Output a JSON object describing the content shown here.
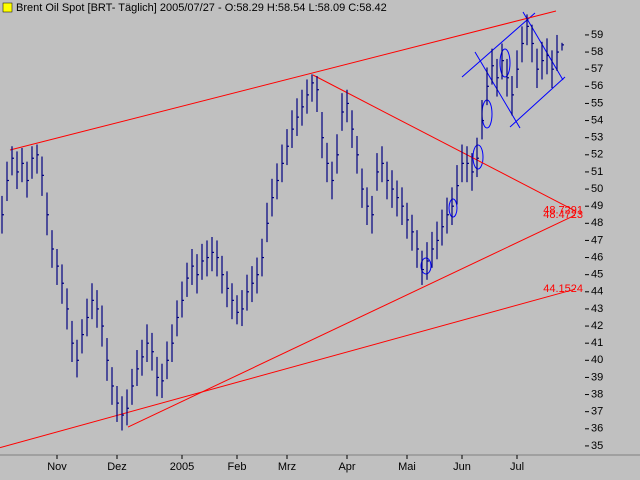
{
  "chart_data": {
    "type": "ohlc",
    "title": "Brent Oil Spot [BRT-  Täglich] 2005/07/27 - O:58.29 H:58.54 L:58.09 C:58.42",
    "categories": [
      null,
      null,
      null,
      null,
      null,
      null,
      null,
      null,
      null,
      null,
      null,
      "Nov",
      null,
      null,
      null,
      null,
      null,
      null,
      null,
      null,
      null,
      null,
      null,
      "Dez",
      null,
      null,
      null,
      null,
      null,
      null,
      null,
      null,
      null,
      null,
      null,
      null,
      "2005",
      null,
      null,
      null,
      null,
      null,
      null,
      null,
      null,
      null,
      null,
      "Feb",
      null,
      null,
      null,
      null,
      null,
      null,
      null,
      null,
      null,
      "Mrz",
      null,
      null,
      null,
      null,
      null,
      null,
      null,
      null,
      null,
      null,
      null,
      "Apr",
      null,
      null,
      null,
      null,
      null,
      null,
      null,
      null,
      null,
      null,
      null,
      "Mai",
      null,
      null,
      null,
      null,
      null,
      null,
      null,
      null,
      null,
      null,
      "Jun",
      null,
      null,
      null,
      null,
      null,
      null,
      null,
      null,
      null,
      null,
      "Jul",
      null,
      null,
      null,
      null,
      null,
      null,
      null,
      null,
      null
    ],
    "series": [
      {
        "name": "High",
        "values": [
          49.6,
          51.6,
          52.5,
          52.2,
          52.4,
          51.6,
          52.5,
          52.6,
          51.9,
          49.8,
          47.6,
          46.5,
          45.6,
          44.2,
          42.3,
          41.2,
          42.4,
          43.6,
          44.5,
          44.1,
          43.2,
          41.3,
          39.6,
          38.5,
          37.9,
          38.3,
          39.5,
          40.6,
          41.2,
          42.1,
          41.6,
          40.2,
          39.8,
          41.1,
          42.1,
          43.5,
          44.6,
          45.7,
          46.5,
          46.2,
          46.8,
          47,
          47.2,
          47,
          46.1,
          45.2,
          44.5,
          43.8,
          44.1,
          45,
          45.5,
          46,
          47.1,
          49.2,
          50.6,
          51.5,
          52.6,
          53.5,
          54.6,
          55.3,
          55.8,
          56.4,
          56.7,
          56.6,
          54.5,
          52.7,
          51.6,
          53.2,
          55.6,
          55.8,
          54.6,
          53.1,
          51.2,
          50.1,
          49.6,
          52.1,
          52.5,
          51.6,
          51.1,
          50.5,
          50.1,
          49.2,
          48.5,
          47.6,
          46.4,
          46.9,
          47.5,
          48.1,
          48.8,
          49.5,
          50.1,
          51.4,
          52.6,
          52.5,
          52.1,
          53,
          55.2,
          57.1,
          58.2,
          57.6,
          58.5,
          57.6,
          56.6,
          58.1,
          59.5,
          60.2,
          59.6,
          58.2,
          58.6,
          58.8,
          58.1,
          59,
          58.54
        ]
      },
      {
        "name": "Low",
        "values": [
          47.4,
          49.3,
          50.8,
          50,
          50.4,
          49.5,
          50.6,
          50.9,
          49.6,
          47.3,
          45.4,
          44.4,
          43.3,
          41.8,
          39.9,
          39,
          40.4,
          41.4,
          42.4,
          41.9,
          40.8,
          38.8,
          37.4,
          36.4,
          35.9,
          36.2,
          37.4,
          38.5,
          39.1,
          39.9,
          39.4,
          37.9,
          37.8,
          38.9,
          39.9,
          41.4,
          42.5,
          43.7,
          44.4,
          43.9,
          44.7,
          44.9,
          45.2,
          44.9,
          43.9,
          43.1,
          42.4,
          42.1,
          42,
          42.9,
          43.4,
          43.9,
          44.9,
          46.9,
          48.4,
          49.4,
          50.4,
          51.4,
          52.4,
          53.1,
          53.7,
          54.4,
          55.1,
          54.5,
          51.8,
          50.4,
          49.4,
          50.9,
          53.4,
          53.9,
          52.4,
          50.9,
          48.9,
          47.9,
          47.4,
          49.9,
          50.4,
          49.4,
          48.9,
          48.4,
          47.9,
          47.1,
          46.4,
          45.4,
          44.4,
          44.7,
          45.4,
          45.9,
          46.7,
          47.4,
          47.9,
          49.1,
          50.4,
          50.4,
          49.9,
          50.7,
          52.9,
          54.9,
          56.1,
          55.4,
          56.4,
          55.4,
          54.3,
          55.9,
          57.4,
          58.4,
          57.4,
          55.9,
          56.4,
          56.7,
          55.9,
          56.9,
          58.09
        ]
      },
      {
        "name": "Close",
        "values": [
          48.5,
          50.5,
          51.8,
          51,
          51.5,
          50.5,
          51.8,
          52,
          50.8,
          48.5,
          46.5,
          45.5,
          44.5,
          43,
          41,
          40,
          41.5,
          42.5,
          43.5,
          43,
          42,
          40,
          38.5,
          37.5,
          36.8,
          37.2,
          38.5,
          39.5,
          40.2,
          41,
          40.5,
          39,
          38.8,
          40,
          41,
          42.5,
          43.5,
          44.8,
          45.5,
          45,
          45.8,
          46,
          46.3,
          46,
          45,
          44.2,
          43.5,
          42.8,
          43,
          44,
          44.5,
          45,
          46,
          48,
          49.5,
          50.5,
          51.5,
          52.5,
          53.5,
          54.2,
          54.8,
          55.5,
          56.2,
          55.8,
          53,
          51.5,
          50.5,
          52,
          54.5,
          55,
          53.5,
          52,
          50,
          49,
          48.5,
          51,
          51.5,
          50.5,
          50,
          49.5,
          49,
          48.2,
          47.5,
          46.5,
          45.3,
          45.8,
          46.5,
          47,
          47.8,
          48.5,
          49,
          50.2,
          51.5,
          51.5,
          51,
          51.8,
          54,
          56,
          57.2,
          56.5,
          57.5,
          56.5,
          55.5,
          57,
          58.5,
          59.5,
          58.5,
          57,
          57.5,
          57.8,
          57,
          58,
          58.42
        ]
      }
    ],
    "color": "#000080",
    "trendline_color": "#ff0000",
    "trendlines": [
      {
        "y": [
          52.28,
          60.4
        ]
      },
      {
        "y": [
          56.66,
          48.7291
        ],
        "price_label": true
      },
      {
        "y": [
          36.1,
          48.4723
        ],
        "price_label": true
      },
      {
        "y": [
          34.9,
          44.1524
        ],
        "price_label": true
      }
    ],
    "ylim": [
      34.47,
      61.04
    ],
    "yticks": [
      35,
      36,
      37,
      38,
      39,
      40,
      41,
      42,
      43,
      44,
      45,
      46,
      47,
      48,
      49,
      50,
      51,
      52,
      53,
      54,
      55,
      56,
      57,
      58,
      59
    ]
  }
}
